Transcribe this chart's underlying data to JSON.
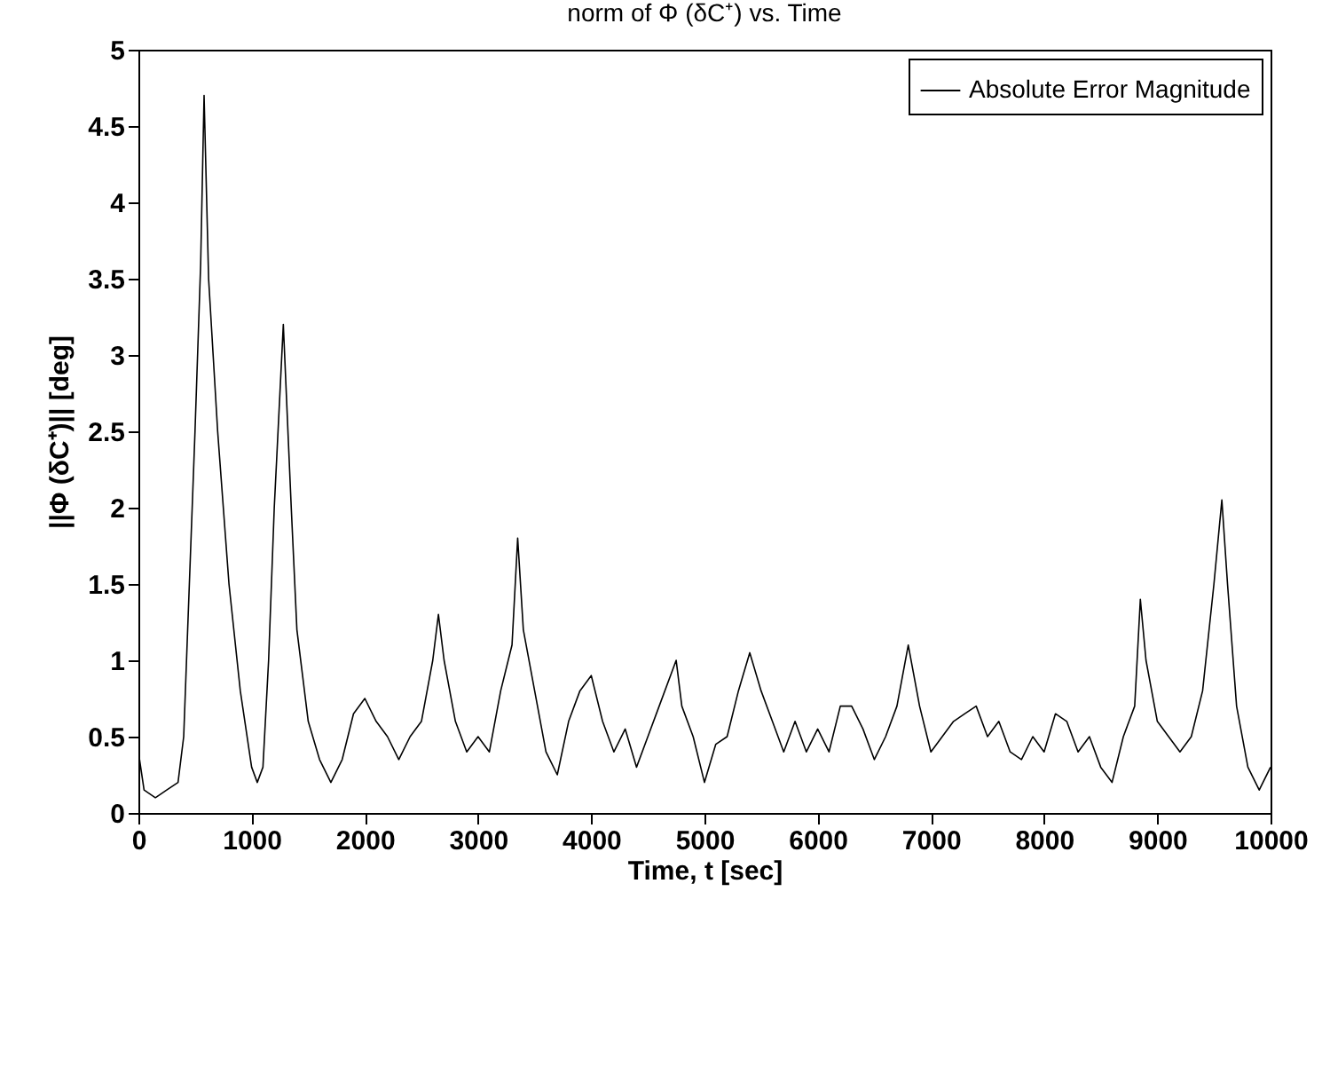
{
  "chart_data": {
    "type": "line",
    "title": "norm of Φ (δC⁺) vs. Time",
    "xlabel": "Time, t [sec]",
    "ylabel": "||Φ (δC⁺)|| [deg]",
    "x": [
      0,
      50,
      150,
      250,
      350,
      400,
      450,
      500,
      550,
      580,
      620,
      700,
      800,
      900,
      1000,
      1050,
      1100,
      1150,
      1200,
      1280,
      1350,
      1400,
      1500,
      1600,
      1700,
      1800,
      1900,
      2000,
      2100,
      2200,
      2300,
      2400,
      2500,
      2600,
      2650,
      2700,
      2800,
      2900,
      3000,
      3100,
      3200,
      3300,
      3350,
      3400,
      3500,
      3600,
      3700,
      3800,
      3900,
      4000,
      4100,
      4200,
      4300,
      4400,
      4500,
      4600,
      4700,
      4750,
      4800,
      4900,
      5000,
      5100,
      5200,
      5300,
      5400,
      5500,
      5600,
      5700,
      5800,
      5900,
      6000,
      6100,
      6200,
      6300,
      6400,
      6500,
      6600,
      6700,
      6800,
      6900,
      7000,
      7100,
      7200,
      7300,
      7400,
      7500,
      7600,
      7700,
      7800,
      7900,
      8000,
      8100,
      8200,
      8300,
      8400,
      8500,
      8600,
      8700,
      8800,
      8850,
      8900,
      9000,
      9100,
      9200,
      9300,
      9400,
      9500,
      9570,
      9620,
      9700,
      9800,
      9900,
      10000
    ],
    "series": [
      {
        "name": "Absolute Error Magnitude",
        "color": "#000000",
        "values": [
          0.4,
          0.15,
          0.1,
          0.15,
          0.2,
          0.5,
          1.5,
          2.5,
          3.6,
          4.7,
          3.5,
          2.5,
          1.5,
          0.8,
          0.3,
          0.2,
          0.3,
          1.0,
          2.0,
          3.2,
          2.0,
          1.2,
          0.6,
          0.35,
          0.2,
          0.35,
          0.65,
          0.75,
          0.6,
          0.5,
          0.35,
          0.5,
          0.6,
          1.0,
          1.3,
          1.0,
          0.6,
          0.4,
          0.5,
          0.4,
          0.8,
          1.1,
          1.8,
          1.2,
          0.8,
          0.4,
          0.25,
          0.6,
          0.8,
          0.9,
          0.6,
          0.4,
          0.55,
          0.3,
          0.5,
          0.7,
          0.9,
          1.0,
          0.7,
          0.5,
          0.2,
          0.45,
          0.5,
          0.8,
          1.05,
          0.8,
          0.6,
          0.4,
          0.6,
          0.4,
          0.55,
          0.4,
          0.7,
          0.7,
          0.55,
          0.35,
          0.5,
          0.7,
          1.1,
          0.7,
          0.4,
          0.5,
          0.6,
          0.65,
          0.7,
          0.5,
          0.6,
          0.4,
          0.35,
          0.5,
          0.4,
          0.65,
          0.6,
          0.4,
          0.5,
          0.3,
          0.2,
          0.5,
          0.7,
          1.4,
          1.0,
          0.6,
          0.5,
          0.4,
          0.5,
          0.8,
          1.5,
          2.05,
          1.5,
          0.7,
          0.3,
          0.15,
          0.3
        ]
      }
    ],
    "xlim": [
      0,
      10000
    ],
    "xticks": [
      0,
      1000,
      2000,
      3000,
      4000,
      5000,
      6000,
      7000,
      8000,
      9000,
      10000
    ],
    "ylim": [
      0,
      5
    ],
    "yticks": [
      0,
      0.5,
      1,
      1.5,
      2,
      2.5,
      3,
      3.5,
      4,
      4.5,
      5
    ],
    "grid": false,
    "legend": "top right",
    "marker": "none",
    "line_style": "solid"
  }
}
